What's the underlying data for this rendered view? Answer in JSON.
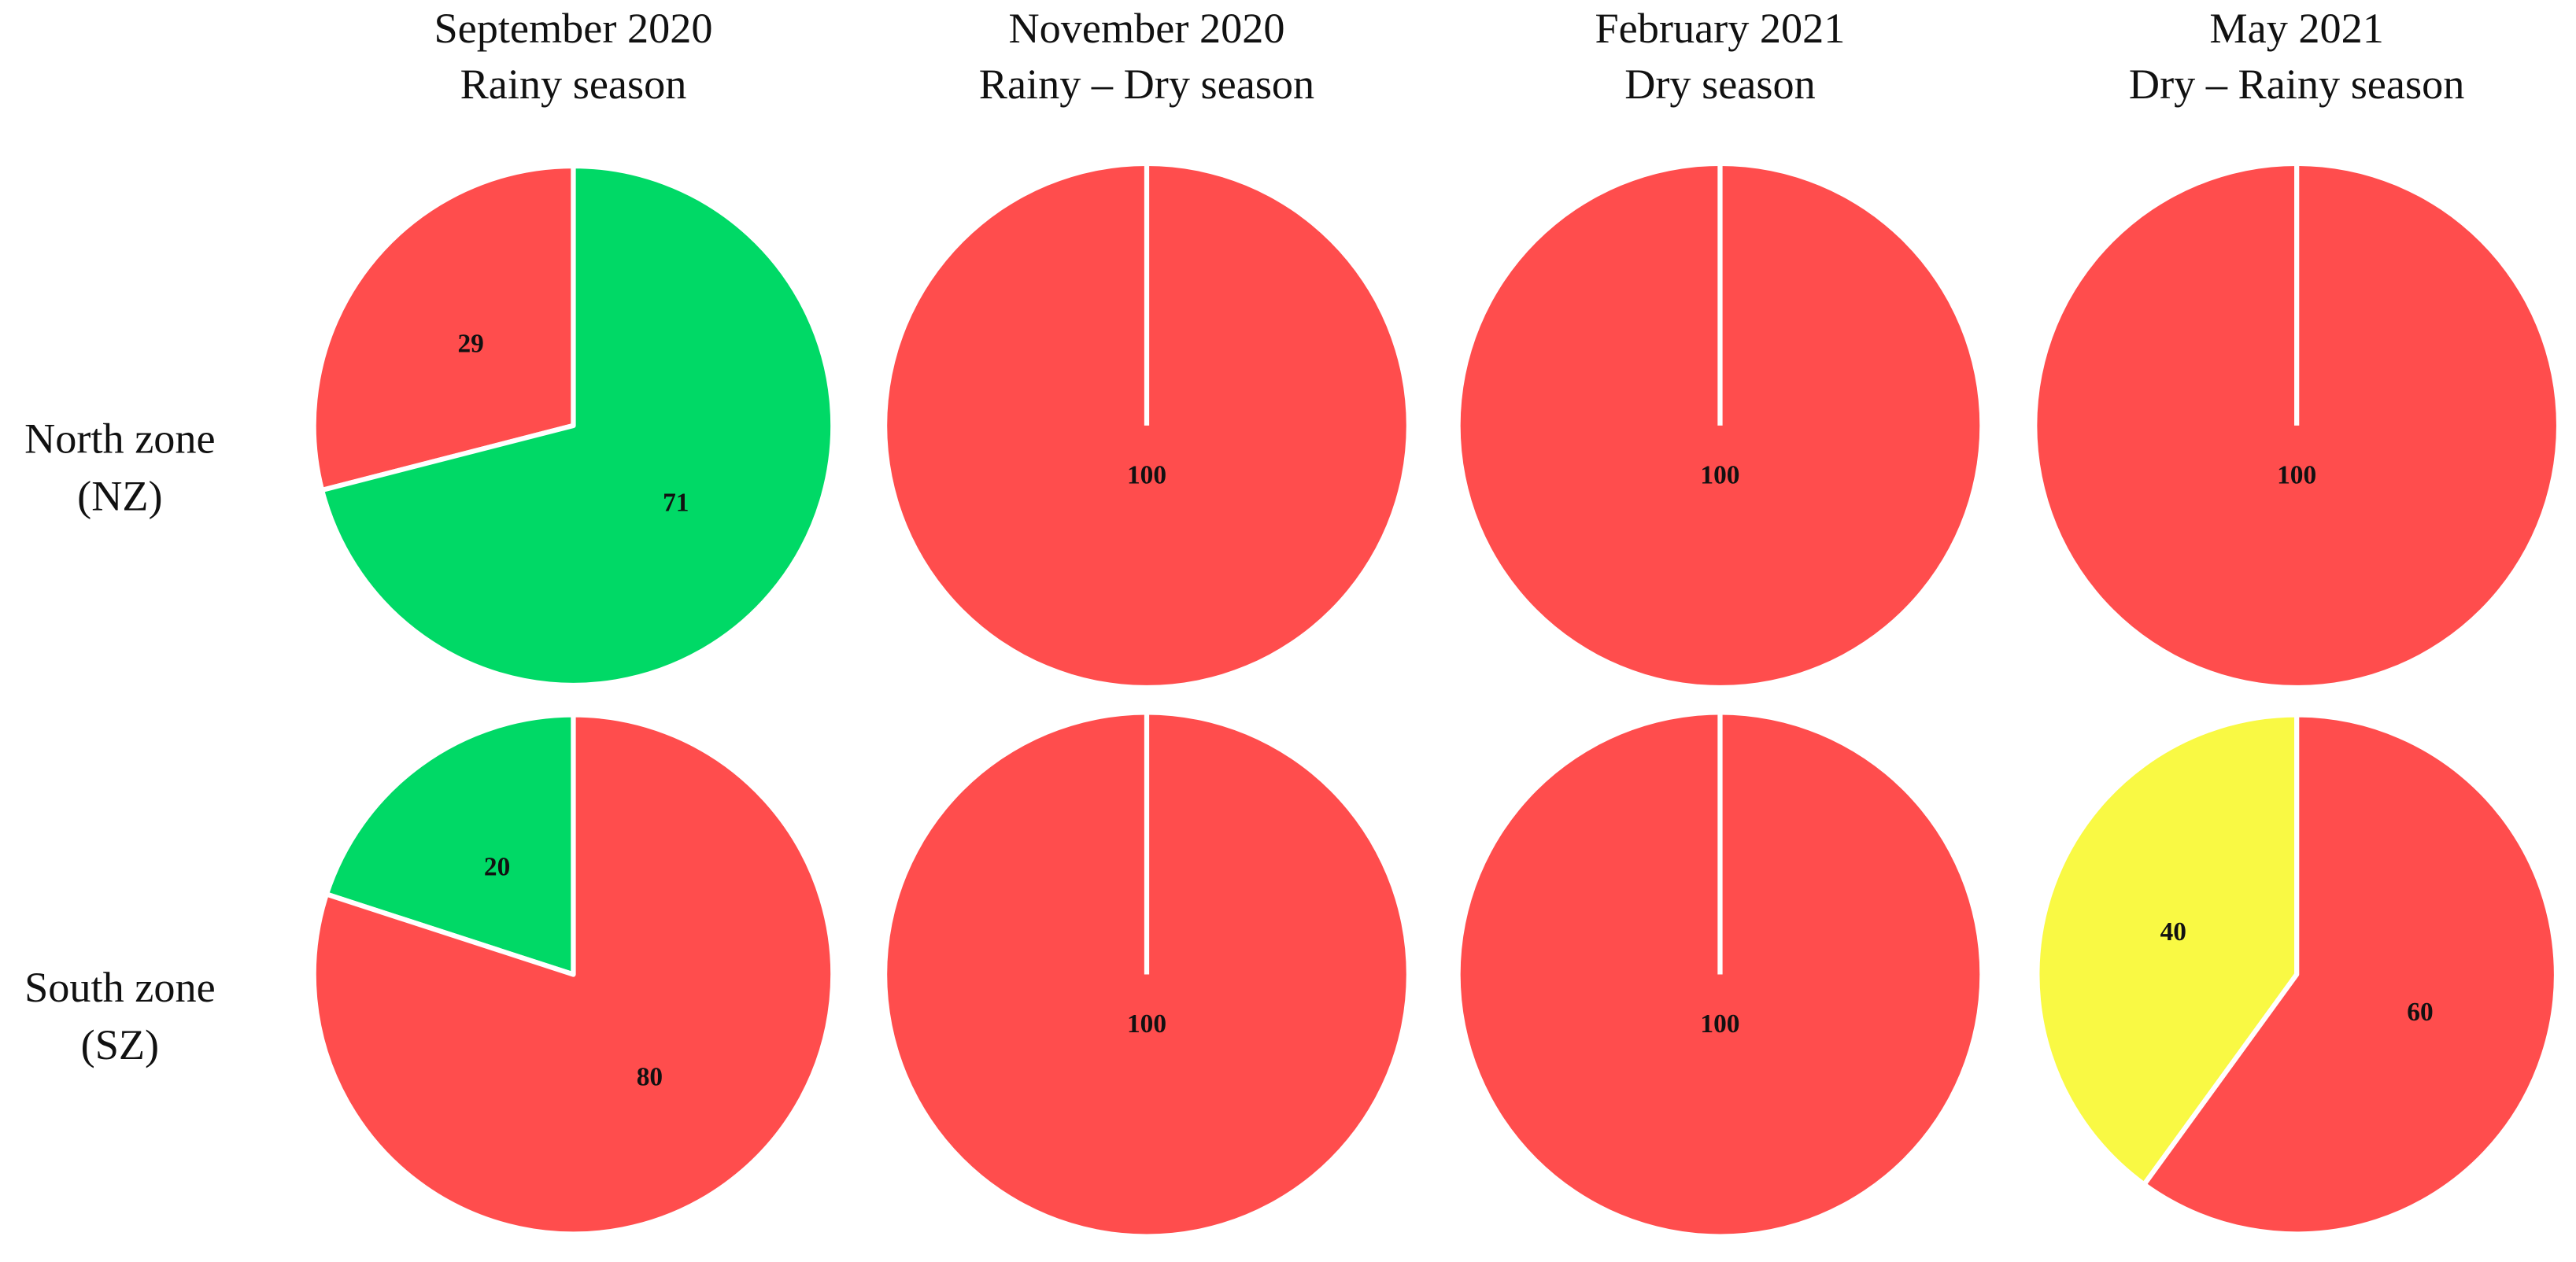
{
  "columns": [
    [
      "September 2020",
      "Rainy season"
    ],
    [
      "November 2020",
      "Rainy – Dry season"
    ],
    [
      "February 2021",
      "Dry season"
    ],
    [
      "May 2021",
      "Dry – Rainy season"
    ]
  ],
  "rows": [
    [
      "North zone",
      "(NZ)"
    ],
    [
      "South zone",
      "(SZ)"
    ]
  ],
  "chart_data": [
    {
      "type": "pie",
      "values": [
        29,
        71
      ],
      "colors": [
        "#ff4d4d",
        "#00d966"
      ],
      "counterclock": true
    },
    {
      "type": "pie",
      "values": [
        100
      ],
      "colors": [
        "#ff4d4d"
      ],
      "counterclock": true
    },
    {
      "type": "pie",
      "values": [
        100
      ],
      "colors": [
        "#ff4d4d"
      ],
      "counterclock": true
    },
    {
      "type": "pie",
      "values": [
        100
      ],
      "colors": [
        "#ff4d4d"
      ],
      "counterclock": true
    },
    {
      "type": "pie",
      "values": [
        20,
        80
      ],
      "colors": [
        "#00d966",
        "#ff4d4d"
      ],
      "counterclock": true
    },
    {
      "type": "pie",
      "values": [
        100
      ],
      "colors": [
        "#ff4d4d"
      ],
      "counterclock": true
    },
    {
      "type": "pie",
      "values": [
        100
      ],
      "colors": [
        "#ff4d4d"
      ],
      "counterclock": true
    },
    {
      "type": "pie",
      "values": [
        40,
        60
      ],
      "colors": [
        "#f9f944",
        "#ff4d4d"
      ],
      "counterclock": true
    }
  ]
}
